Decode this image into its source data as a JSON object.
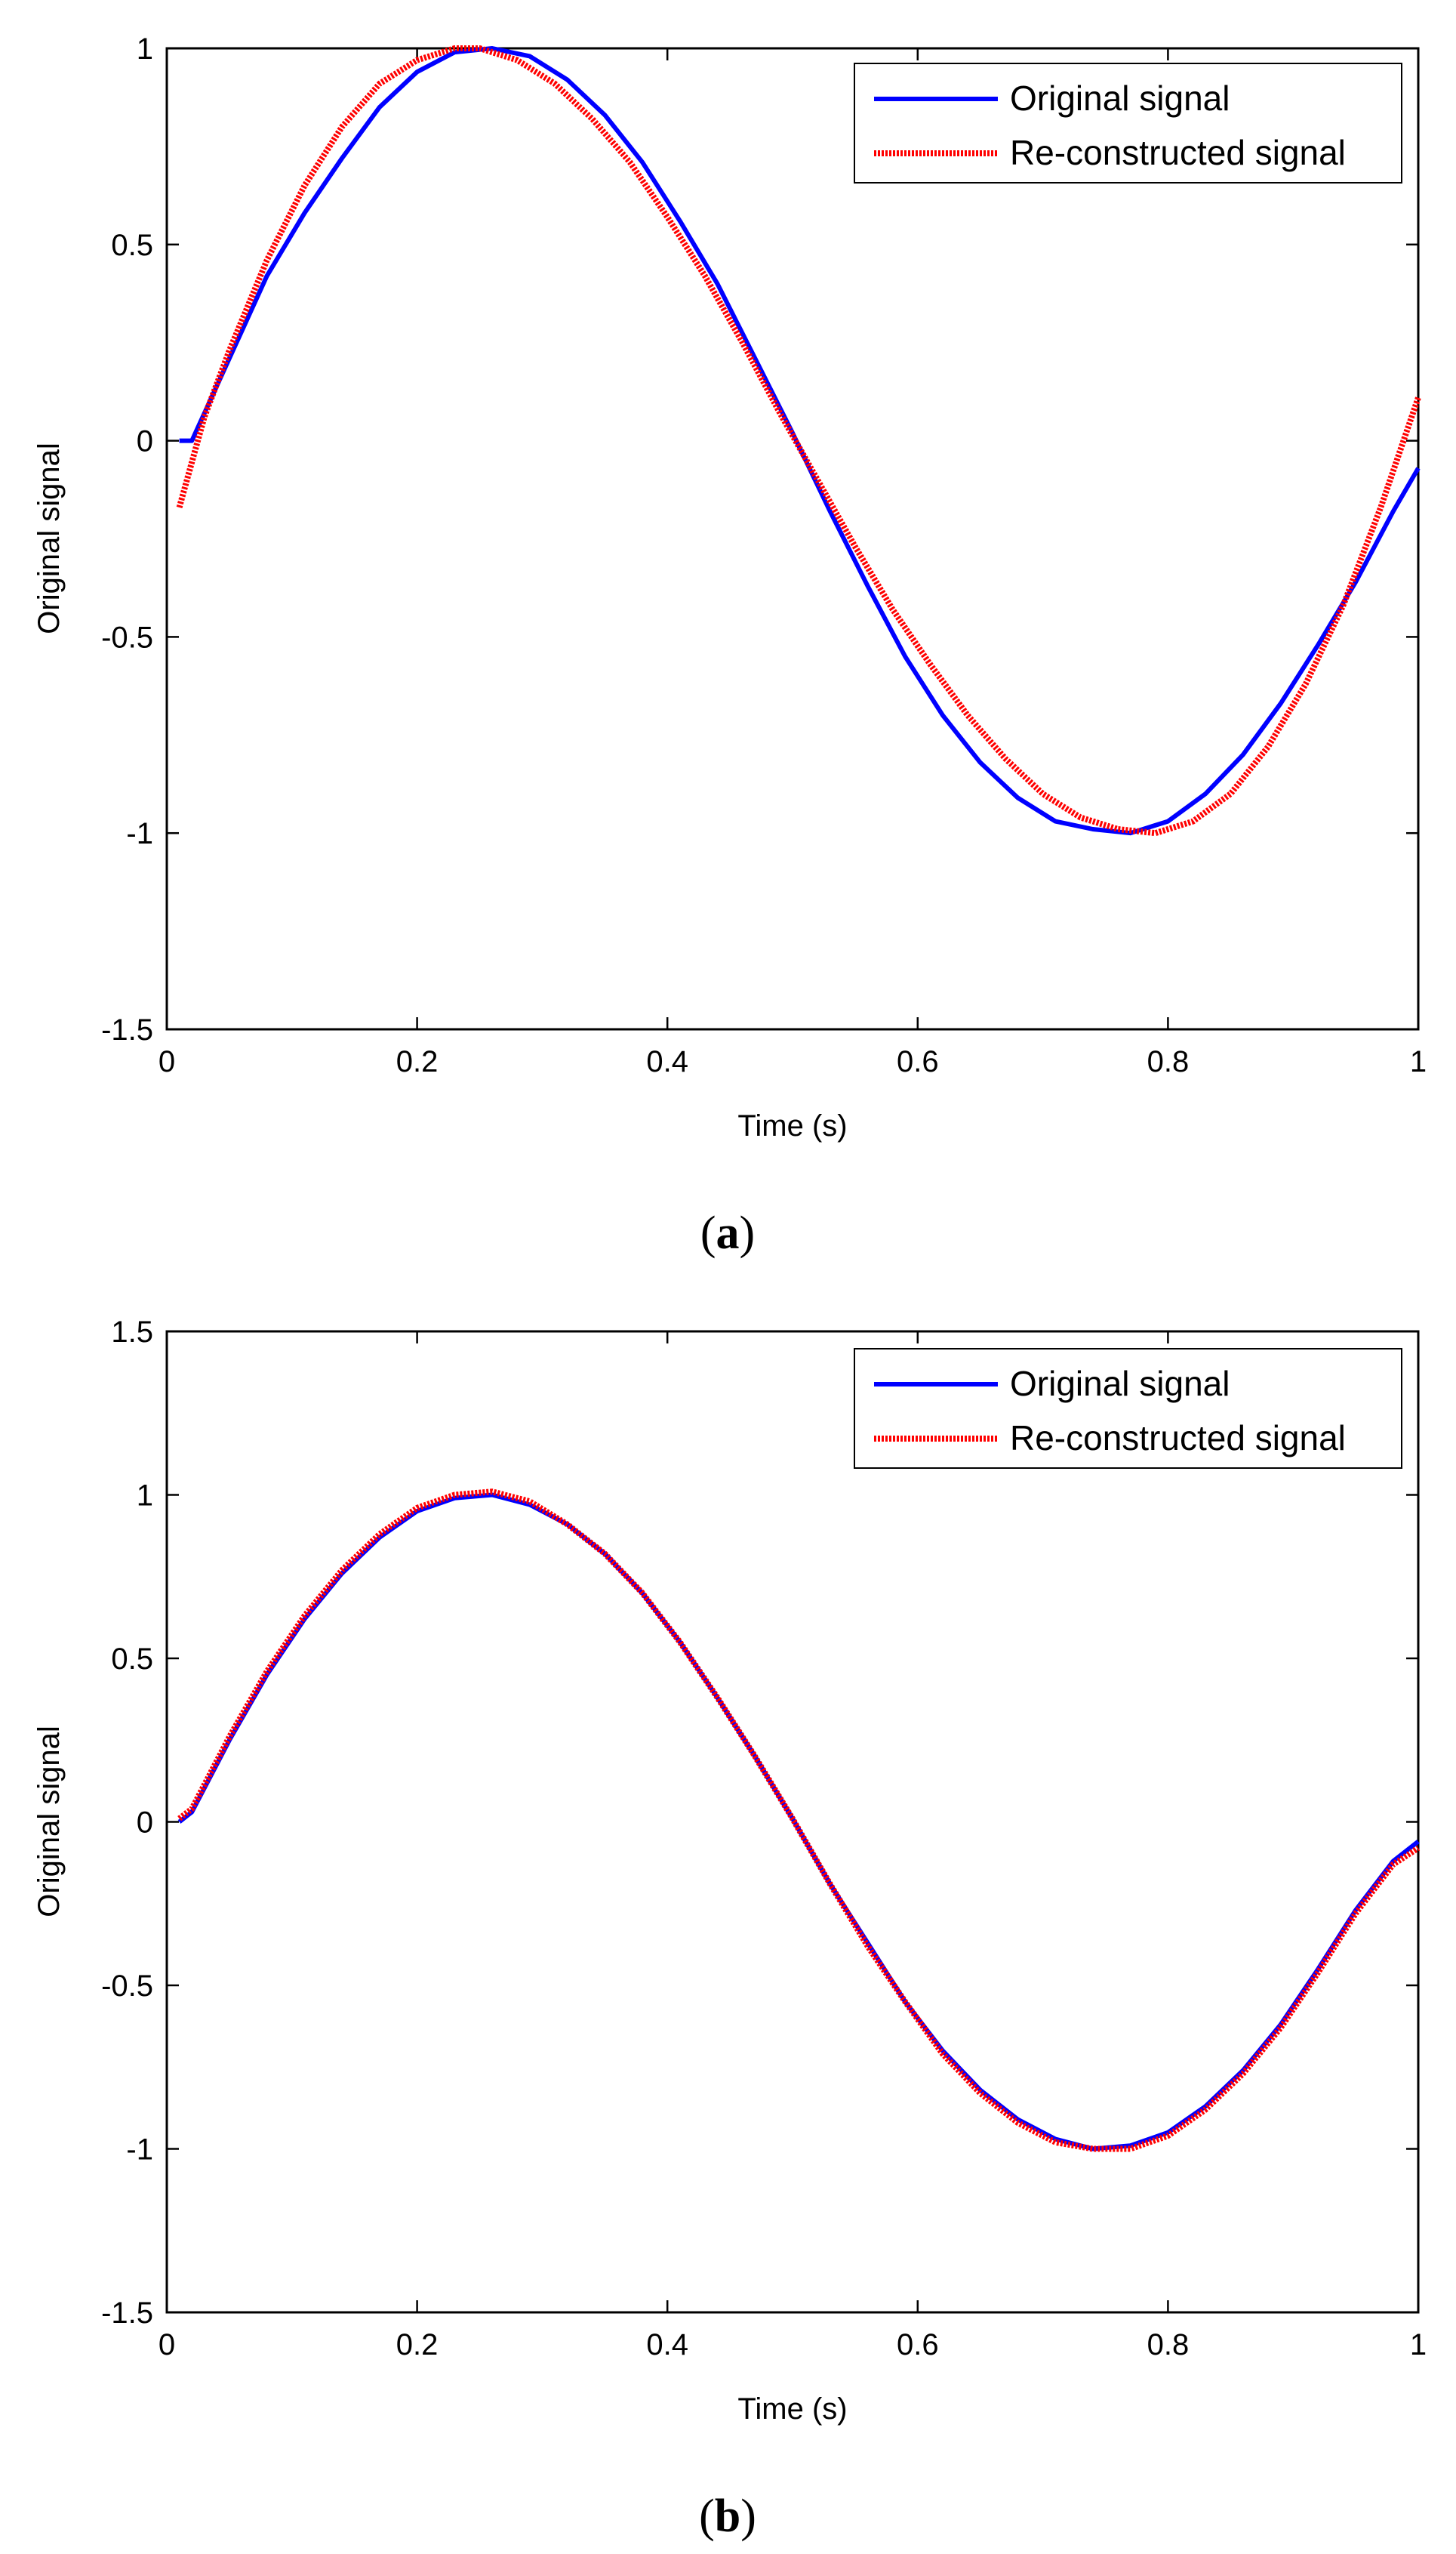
{
  "chart_data": [
    {
      "type": "line",
      "panel_label": "a",
      "title": "",
      "xlabel": "Time (s)",
      "ylabel": "Original signal",
      "xlim": [
        0,
        1
      ],
      "ylim": [
        -1.5,
        1
      ],
      "xticks": [
        0,
        0.2,
        0.4,
        0.6,
        0.8,
        1
      ],
      "xtick_labels": [
        "0",
        "0.2",
        "0.4",
        "0.6",
        "0.8",
        "1"
      ],
      "yticks": [
        -1.5,
        -1,
        -0.5,
        0,
        0.5,
        1
      ],
      "ytick_labels": [
        "-1.5",
        "-1",
        "-0.5",
        "0",
        "0.5",
        "1"
      ],
      "legend_position": "top-right",
      "series": [
        {
          "name": "Original signal",
          "color": "#0000ff",
          "style": "solid",
          "x": [
            0.01,
            0.02,
            0.05,
            0.08,
            0.11,
            0.14,
            0.17,
            0.2,
            0.23,
            0.26,
            0.29,
            0.32,
            0.35,
            0.38,
            0.41,
            0.44,
            0.47,
            0.5,
            0.53,
            0.56,
            0.59,
            0.62,
            0.65,
            0.68,
            0.71,
            0.74,
            0.77,
            0.8,
            0.83,
            0.86,
            0.89,
            0.92,
            0.95,
            0.98,
            1.0
          ],
          "y": [
            0.0,
            0.0,
            0.21,
            0.42,
            0.58,
            0.72,
            0.85,
            0.94,
            0.99,
            1.0,
            0.98,
            0.92,
            0.83,
            0.71,
            0.56,
            0.4,
            0.21,
            0.02,
            -0.18,
            -0.37,
            -0.55,
            -0.7,
            -0.82,
            -0.91,
            -0.97,
            -0.99,
            -1.0,
            -0.97,
            -0.9,
            -0.8,
            -0.67,
            -0.52,
            -0.36,
            -0.18,
            -0.07
          ]
        },
        {
          "name": "Re-constructed signal",
          "color": "#ff0000",
          "style": "dotted",
          "x": [
            0.01,
            0.03,
            0.05,
            0.08,
            0.11,
            0.14,
            0.17,
            0.2,
            0.23,
            0.25,
            0.28,
            0.31,
            0.34,
            0.37,
            0.4,
            0.43,
            0.46,
            0.49,
            0.52,
            0.55,
            0.58,
            0.61,
            0.64,
            0.67,
            0.7,
            0.73,
            0.76,
            0.79,
            0.82,
            0.85,
            0.88,
            0.91,
            0.94,
            0.97,
            1.0
          ],
          "y": [
            -0.17,
            0.06,
            0.23,
            0.46,
            0.65,
            0.8,
            0.91,
            0.97,
            1.0,
            1.0,
            0.97,
            0.91,
            0.82,
            0.71,
            0.57,
            0.42,
            0.25,
            0.07,
            -0.1,
            -0.27,
            -0.43,
            -0.57,
            -0.7,
            -0.81,
            -0.9,
            -0.96,
            -0.99,
            -1.0,
            -0.97,
            -0.9,
            -0.78,
            -0.62,
            -0.42,
            -0.17,
            0.11
          ]
        }
      ]
    },
    {
      "type": "line",
      "panel_label": "b",
      "title": "",
      "xlabel": "Time (s)",
      "ylabel": "Original signal",
      "xlim": [
        0,
        1
      ],
      "ylim": [
        -1.5,
        1.5
      ],
      "xticks": [
        0,
        0.2,
        0.4,
        0.6,
        0.8,
        1
      ],
      "xtick_labels": [
        "0",
        "0.2",
        "0.4",
        "0.6",
        "0.8",
        "1"
      ],
      "yticks": [
        -1.5,
        -1,
        -0.5,
        0,
        0.5,
        1,
        1.5
      ],
      "ytick_labels": [
        "-1.5",
        "-1",
        "-0.5",
        "0",
        "0.5",
        "1",
        "1.5"
      ],
      "legend_position": "top-right",
      "series": [
        {
          "name": "Original signal",
          "color": "#0000ff",
          "style": "solid",
          "x": [
            0.01,
            0.02,
            0.05,
            0.08,
            0.11,
            0.14,
            0.17,
            0.2,
            0.23,
            0.26,
            0.29,
            0.32,
            0.35,
            0.38,
            0.41,
            0.44,
            0.47,
            0.5,
            0.53,
            0.56,
            0.59,
            0.62,
            0.65,
            0.68,
            0.71,
            0.74,
            0.77,
            0.8,
            0.83,
            0.86,
            0.89,
            0.92,
            0.95,
            0.98,
            1.0
          ],
          "y": [
            0.0,
            0.03,
            0.25,
            0.45,
            0.62,
            0.76,
            0.87,
            0.95,
            0.99,
            1.0,
            0.97,
            0.91,
            0.82,
            0.7,
            0.55,
            0.38,
            0.2,
            0.01,
            -0.19,
            -0.37,
            -0.55,
            -0.7,
            -0.82,
            -0.91,
            -0.97,
            -1.0,
            -0.99,
            -0.95,
            -0.87,
            -0.76,
            -0.62,
            -0.45,
            -0.27,
            -0.12,
            -0.06
          ]
        },
        {
          "name": "Re-constructed signal",
          "color": "#ff0000",
          "style": "dotted",
          "x": [
            0.01,
            0.02,
            0.05,
            0.08,
            0.11,
            0.14,
            0.17,
            0.2,
            0.23,
            0.26,
            0.29,
            0.32,
            0.35,
            0.38,
            0.41,
            0.44,
            0.47,
            0.5,
            0.53,
            0.56,
            0.59,
            0.62,
            0.65,
            0.68,
            0.71,
            0.74,
            0.77,
            0.8,
            0.83,
            0.86,
            0.89,
            0.92,
            0.95,
            0.98,
            1.0
          ],
          "y": [
            0.01,
            0.04,
            0.26,
            0.46,
            0.63,
            0.77,
            0.88,
            0.96,
            1.0,
            1.01,
            0.98,
            0.91,
            0.82,
            0.7,
            0.55,
            0.38,
            0.2,
            0.01,
            -0.19,
            -0.38,
            -0.55,
            -0.71,
            -0.83,
            -0.92,
            -0.98,
            -1.0,
            -1.0,
            -0.96,
            -0.88,
            -0.77,
            -0.63,
            -0.46,
            -0.28,
            -0.13,
            -0.08
          ]
        }
      ]
    }
  ]
}
